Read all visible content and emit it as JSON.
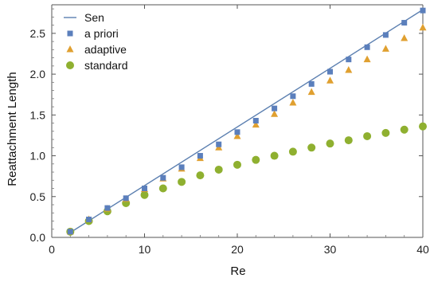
{
  "chart_data": {
    "type": "scatter",
    "xlabel": "Re",
    "ylabel": "Reattachment Length",
    "xlim": [
      0,
      40
    ],
    "ylim": [
      0,
      2.85
    ],
    "xticks": [
      0,
      10,
      20,
      30,
      40
    ],
    "xtick_labels": [
      "0",
      "10",
      "20",
      "30",
      "40"
    ],
    "yticks": [
      0,
      0.5,
      1.0,
      1.5,
      2.0,
      2.5
    ],
    "ytick_labels": [
      "0.0",
      "0.5",
      "1.0",
      "1.5",
      "2.0",
      "2.5"
    ],
    "grid": false,
    "legend_position": "top-left",
    "series": [
      {
        "name": "Sen",
        "kind": "line",
        "color": "#5b7fb0",
        "x": [
          2,
          40
        ],
        "y": [
          0.06,
          2.79
        ]
      },
      {
        "name": "a priori",
        "kind": "square",
        "color": "#5b7fbc",
        "x": [
          2,
          4,
          6,
          8,
          10,
          12,
          14,
          16,
          18,
          20,
          22,
          24,
          26,
          28,
          30,
          32,
          34,
          36,
          38,
          40
        ],
        "y": [
          0.07,
          0.22,
          0.36,
          0.48,
          0.6,
          0.73,
          0.86,
          1.0,
          1.14,
          1.29,
          1.43,
          1.58,
          1.73,
          1.88,
          2.03,
          2.18,
          2.33,
          2.48,
          2.63,
          2.78
        ]
      },
      {
        "name": "adaptive",
        "kind": "triangle",
        "color": "#e0a030",
        "x": [
          2,
          4,
          6,
          8,
          10,
          12,
          14,
          16,
          18,
          20,
          22,
          24,
          26,
          28,
          30,
          32,
          34,
          36,
          38,
          40
        ],
        "y": [
          0.07,
          0.22,
          0.35,
          0.47,
          0.59,
          0.72,
          0.84,
          0.97,
          1.1,
          1.24,
          1.38,
          1.51,
          1.65,
          1.78,
          1.92,
          2.05,
          2.18,
          2.31,
          2.44,
          2.57
        ]
      },
      {
        "name": "standard",
        "kind": "circle",
        "color": "#8fb030",
        "x": [
          2,
          4,
          6,
          8,
          10,
          12,
          14,
          16,
          18,
          20,
          22,
          24,
          26,
          28,
          30,
          32,
          34,
          36,
          38,
          40
        ],
        "y": [
          0.07,
          0.2,
          0.32,
          0.42,
          0.52,
          0.6,
          0.68,
          0.76,
          0.83,
          0.89,
          0.95,
          1.0,
          1.05,
          1.1,
          1.15,
          1.19,
          1.24,
          1.28,
          1.32,
          1.36
        ]
      }
    ]
  }
}
